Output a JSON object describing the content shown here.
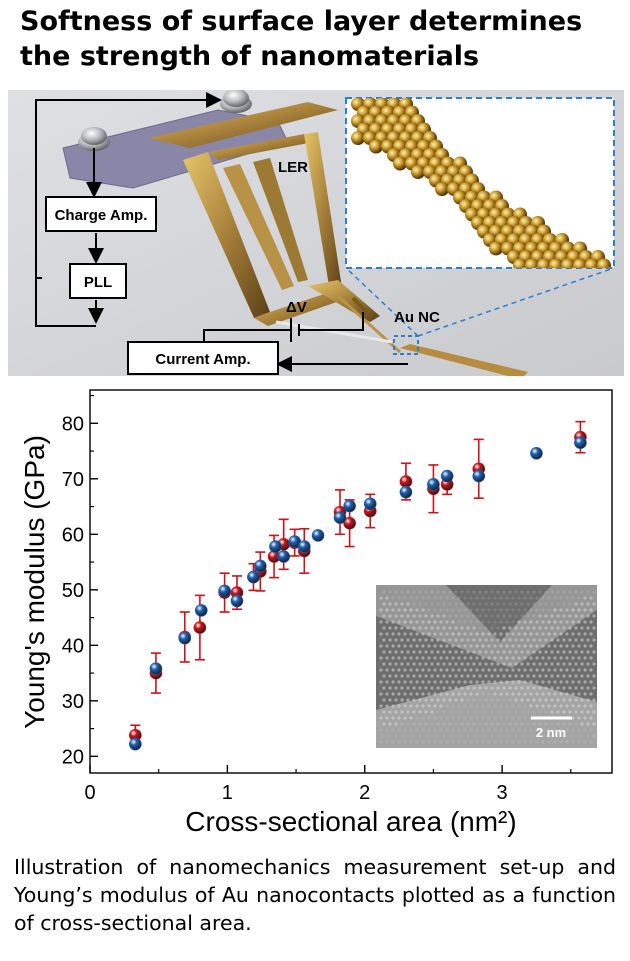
{
  "headline": "Softness of surface layer determines the strength of nanomaterials",
  "diagram": {
    "labels": {
      "ler": "LER",
      "charge_amp": "Charge Amp.",
      "pll": "PLL",
      "delta_v": "ΔV",
      "au_nc": "Au NC",
      "current_amp": "Current Amp."
    }
  },
  "chart_data": {
    "type": "scatter",
    "xlabel": "Cross-sectional area (nm²)",
    "ylabel": "Young's modulus (GPa)",
    "xlim": [
      0,
      3.8
    ],
    "ylim": [
      17,
      86
    ],
    "xticks": [
      0,
      1,
      2,
      3
    ],
    "yticks": [
      20,
      30,
      40,
      50,
      60,
      70,
      80
    ],
    "grid": false,
    "legend": "none",
    "series": [
      {
        "color": "#c8141c",
        "points": [
          {
            "x": 0.33,
            "y": 23.8,
            "err": 1.8
          },
          {
            "x": 0.48,
            "y": 35.0,
            "err": 3.6
          },
          {
            "x": 0.69,
            "y": 41.5,
            "err": 4.5
          },
          {
            "x": 0.8,
            "y": 43.2,
            "err": 5.8
          },
          {
            "x": 0.98,
            "y": 49.5,
            "err": 3.5
          },
          {
            "x": 1.07,
            "y": 49.5,
            "err": 3.0
          },
          {
            "x": 1.19,
            "y": 52.3,
            "err": 2.4
          },
          {
            "x": 1.24,
            "y": 53.3,
            "err": 3.5
          },
          {
            "x": 1.34,
            "y": 56.0,
            "err": 3.8
          },
          {
            "x": 1.41,
            "y": 58.2,
            "err": 4.5
          },
          {
            "x": 1.49,
            "y": 58.5,
            "err": 2.4
          },
          {
            "x": 1.56,
            "y": 57.0,
            "err": 4.0
          },
          {
            "x": 1.82,
            "y": 64.0,
            "err": 4.0
          },
          {
            "x": 1.89,
            "y": 62.0,
            "err": 4.2
          },
          {
            "x": 2.04,
            "y": 64.2,
            "err": 3.0
          },
          {
            "x": 2.3,
            "y": 69.5,
            "err": 3.3
          },
          {
            "x": 2.5,
            "y": 68.2,
            "err": 4.3
          },
          {
            "x": 2.6,
            "y": 69.0,
            "err": 1.8
          },
          {
            "x": 2.83,
            "y": 71.8,
            "err": 5.3
          },
          {
            "x": 3.57,
            "y": 77.5,
            "err": 2.8
          }
        ]
      },
      {
        "color": "#1c60b4",
        "points": [
          {
            "x": 0.33,
            "y": 22.2
          },
          {
            "x": 0.48,
            "y": 35.8
          },
          {
            "x": 0.69,
            "y": 41.3
          },
          {
            "x": 0.81,
            "y": 46.3
          },
          {
            "x": 0.98,
            "y": 49.8
          },
          {
            "x": 1.07,
            "y": 48.0
          },
          {
            "x": 1.19,
            "y": 52.3
          },
          {
            "x": 1.24,
            "y": 54.3
          },
          {
            "x": 1.35,
            "y": 57.8
          },
          {
            "x": 1.41,
            "y": 56.0
          },
          {
            "x": 1.49,
            "y": 58.7
          },
          {
            "x": 1.56,
            "y": 57.8
          },
          {
            "x": 1.66,
            "y": 59.8
          },
          {
            "x": 1.82,
            "y": 63.0
          },
          {
            "x": 1.89,
            "y": 65.1
          },
          {
            "x": 2.04,
            "y": 65.5
          },
          {
            "x": 2.3,
            "y": 67.6
          },
          {
            "x": 2.5,
            "y": 69.0
          },
          {
            "x": 2.6,
            "y": 70.5
          },
          {
            "x": 2.83,
            "y": 70.5
          },
          {
            "x": 3.25,
            "y": 74.6
          },
          {
            "x": 3.57,
            "y": 76.5
          }
        ]
      }
    ],
    "inset": {
      "scale_label": "2 nm"
    }
  },
  "caption": "Illustration of nanomechanics measurement set-up and Young’s modulus of Au nanocontacts plotted as a function of cross-sectional area."
}
